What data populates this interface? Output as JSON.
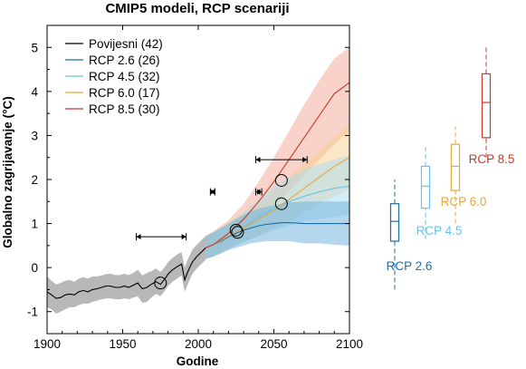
{
  "chart_data": {
    "type": "line",
    "title": "CMIP5 modeli, RCP scenariji",
    "xlabel": "Godine",
    "ylabel": "Globalno zagrijavanje (°C)",
    "xlim": [
      1900,
      2100
    ],
    "ylim": [
      -1.5,
      5.5
    ],
    "x_ticks": [
      "1900",
      "1950",
      "2000",
      "2050",
      "2100"
    ],
    "y_ticks": [
      "-1",
      "0",
      "1",
      "2",
      "3",
      "4",
      "5"
    ],
    "grid": false,
    "legend_position": "top-left",
    "series": [
      {
        "name": "Povijesni (42)",
        "color": "#000000",
        "band_color": "#a0a0a0",
        "x": [
          1900,
          1903,
          1906,
          1909,
          1912,
          1915,
          1918,
          1921,
          1924,
          1927,
          1930,
          1933,
          1936,
          1939,
          1942,
          1945,
          1948,
          1951,
          1954,
          1957,
          1960,
          1963,
          1966,
          1969,
          1972,
          1975,
          1978,
          1980,
          1983,
          1986,
          1989,
          1991,
          1993,
          1996,
          1999,
          2002,
          2005
        ],
        "values": [
          -0.55,
          -0.62,
          -0.7,
          -0.68,
          -0.62,
          -0.6,
          -0.62,
          -0.55,
          -0.52,
          -0.55,
          -0.5,
          -0.48,
          -0.45,
          -0.42,
          -0.42,
          -0.45,
          -0.45,
          -0.42,
          -0.45,
          -0.4,
          -0.35,
          -0.48,
          -0.45,
          -0.38,
          -0.32,
          -0.38,
          -0.25,
          -0.15,
          -0.05,
          0.02,
          0.08,
          -0.28,
          -0.1,
          0.12,
          0.25,
          0.35,
          0.45
        ],
        "lower": [
          -0.9,
          -0.95,
          -1.05,
          -1.0,
          -0.95,
          -0.9,
          -0.9,
          -0.85,
          -0.82,
          -0.82,
          -0.78,
          -0.75,
          -0.72,
          -0.7,
          -0.7,
          -0.72,
          -0.72,
          -0.7,
          -0.72,
          -0.68,
          -0.65,
          -0.8,
          -0.78,
          -0.68,
          -0.6,
          -0.65,
          -0.52,
          -0.42,
          -0.32,
          -0.25,
          -0.18,
          -0.55,
          -0.38,
          -0.15,
          -0.02,
          0.08,
          0.18
        ],
        "upper": [
          -0.2,
          -0.3,
          -0.38,
          -0.35,
          -0.3,
          -0.28,
          -0.32,
          -0.25,
          -0.22,
          -0.25,
          -0.2,
          -0.2,
          -0.18,
          -0.15,
          -0.14,
          -0.17,
          -0.17,
          -0.14,
          -0.17,
          -0.12,
          -0.05,
          -0.18,
          -0.12,
          -0.08,
          -0.02,
          -0.1,
          0.02,
          0.12,
          0.22,
          0.3,
          0.35,
          0.0,
          0.18,
          0.4,
          0.52,
          0.62,
          0.72
        ]
      },
      {
        "name": "RCP 2.6 (26)",
        "color": "#1b6ea8",
        "band_color": "#6ab0de",
        "x": [
          2005,
          2010,
          2015,
          2020,
          2025,
          2030,
          2035,
          2040,
          2045,
          2050,
          2055,
          2060,
          2070,
          2080,
          2090,
          2100
        ],
        "values": [
          0.45,
          0.52,
          0.6,
          0.7,
          0.78,
          0.85,
          0.9,
          0.95,
          0.98,
          1.0,
          1.02,
          1.02,
          1.0,
          1.0,
          1.0,
          1.0
        ],
        "lower": [
          0.2,
          0.25,
          0.32,
          0.4,
          0.45,
          0.5,
          0.55,
          0.58,
          0.6,
          0.6,
          0.6,
          0.6,
          0.55,
          0.55,
          0.52,
          0.5
        ],
        "upper": [
          0.72,
          0.8,
          0.9,
          1.0,
          1.1,
          1.2,
          1.28,
          1.34,
          1.38,
          1.42,
          1.45,
          1.48,
          1.5,
          1.5,
          1.5,
          1.5
        ]
      },
      {
        "name": "RCP 4.5 (32)",
        "color": "#63c4e6",
        "band_color": "#a7dcef",
        "x": [
          2005,
          2010,
          2020,
          2030,
          2040,
          2050,
          2060,
          2070,
          2080,
          2090,
          2100
        ],
        "values": [
          0.45,
          0.52,
          0.72,
          0.92,
          1.15,
          1.35,
          1.5,
          1.62,
          1.72,
          1.8,
          1.85
        ],
        "lower": [
          0.2,
          0.25,
          0.42,
          0.58,
          0.72,
          0.85,
          0.95,
          1.05,
          1.1,
          1.15,
          1.2
        ],
        "upper": [
          0.72,
          0.8,
          1.0,
          1.25,
          1.55,
          1.85,
          2.05,
          2.22,
          2.35,
          2.45,
          2.55
        ]
      },
      {
        "name": "RCP 6.0 (17)",
        "color": "#e8a640",
        "band_color": "#f5d08e",
        "x": [
          2005,
          2010,
          2020,
          2030,
          2040,
          2050,
          2060,
          2070,
          2080,
          2090,
          2100
        ],
        "values": [
          0.45,
          0.52,
          0.72,
          0.9,
          1.1,
          1.3,
          1.55,
          1.8,
          2.05,
          2.3,
          2.5
        ],
        "lower": [
          0.2,
          0.25,
          0.42,
          0.58,
          0.72,
          0.88,
          1.05,
          1.25,
          1.45,
          1.62,
          1.8
        ],
        "upper": [
          0.72,
          0.8,
          1.02,
          1.25,
          1.5,
          1.75,
          2.05,
          2.35,
          2.65,
          2.95,
          3.25
        ]
      },
      {
        "name": "RCP 8.5 (30)",
        "color": "#c8392b",
        "band_color": "#f3a796",
        "x": [
          2005,
          2010,
          2020,
          2030,
          2040,
          2050,
          2060,
          2070,
          2080,
          2090,
          2100
        ],
        "values": [
          0.45,
          0.52,
          0.78,
          1.1,
          1.5,
          1.95,
          2.45,
          2.95,
          3.45,
          3.95,
          4.2
        ],
        "lower": [
          0.2,
          0.25,
          0.5,
          0.75,
          1.05,
          1.4,
          1.75,
          2.1,
          2.45,
          2.8,
          3.1
        ],
        "upper": [
          0.72,
          0.82,
          1.08,
          1.45,
          1.95,
          2.5,
          3.1,
          3.7,
          4.25,
          4.75,
          5.0
        ]
      }
    ],
    "circles": [
      {
        "x": 1975,
        "y": -0.35
      },
      {
        "x": 2026,
        "y": 0.8
      },
      {
        "x": 2025,
        "y": 0.85
      },
      {
        "x": 2055,
        "y": 1.45
      },
      {
        "x": 2055,
        "y": 1.98
      }
    ],
    "range_markers": [
      {
        "from": 1959,
        "to": 1992,
        "y": 0.7
      },
      {
        "from": 2008,
        "to": 2011,
        "y": 1.72
      },
      {
        "from": 2038,
        "to": 2042,
        "y": 1.72
      },
      {
        "from": 2038,
        "to": 2072,
        "y": 2.45
      }
    ],
    "boxplots": [
      {
        "label": "RCP 2.6",
        "color": "#1b6ea8",
        "whisker_low": -0.5,
        "q1": 0.6,
        "median": 1.05,
        "q3": 1.45,
        "whisker_high": 2.0
      },
      {
        "label": "RCP 4.5",
        "color": "#63c4e6",
        "whisker_low": 0.65,
        "q1": 1.35,
        "median": 1.85,
        "q3": 2.3,
        "whisker_high": 2.75
      },
      {
        "label": "RCP 6.0",
        "color": "#e8a640",
        "whisker_low": 1.0,
        "q1": 1.75,
        "median": 2.3,
        "q3": 2.8,
        "whisker_high": 3.2
      },
      {
        "label": "RCP 8.5",
        "color": "#c8392b",
        "whisker_low": 2.5,
        "q1": 2.95,
        "median": 3.75,
        "q3": 4.4,
        "whisker_high": 5.05
      }
    ]
  }
}
